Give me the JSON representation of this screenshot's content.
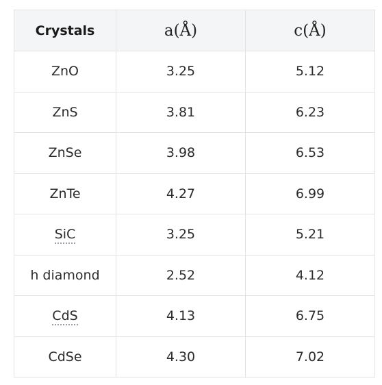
{
  "table": {
    "headers": [
      "Crystals",
      "a(Å)",
      "c(Å)"
    ],
    "rows": [
      {
        "crystal": "ZnO",
        "a": "3.25",
        "c": "5.12",
        "linked": false
      },
      {
        "crystal": "ZnS",
        "a": "3.81",
        "c": "6.23",
        "linked": false
      },
      {
        "crystal": "ZnSe",
        "a": "3.98",
        "c": "6.53",
        "linked": false
      },
      {
        "crystal": "ZnTe",
        "a": "4.27",
        "c": "6.99",
        "linked": false
      },
      {
        "crystal": "SiC",
        "a": "3.25",
        "c": "5.21",
        "linked": true
      },
      {
        "crystal": "h diamond",
        "a": "2.52",
        "c": "4.12",
        "linked": false
      },
      {
        "crystal": "CdS",
        "a": "4.13",
        "c": "6.75",
        "linked": true
      },
      {
        "crystal": "CdSe",
        "a": "4.30",
        "c": "7.02",
        "linked": false
      }
    ]
  }
}
